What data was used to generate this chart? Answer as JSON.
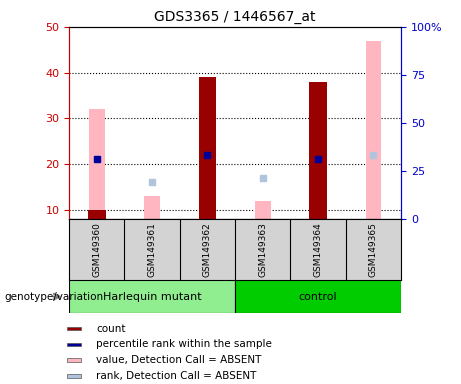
{
  "title": "GDS3365 / 1446567_at",
  "samples": [
    "GSM149360",
    "GSM149361",
    "GSM149362",
    "GSM149363",
    "GSM149364",
    "GSM149365"
  ],
  "groups": [
    {
      "name": "Harlequin mutant",
      "indices": [
        0,
        1,
        2
      ],
      "color": "#90ee90"
    },
    {
      "name": "control",
      "indices": [
        3,
        4,
        5
      ],
      "color": "#00cc00"
    }
  ],
  "count_values": [
    10,
    null,
    39,
    null,
    38,
    null
  ],
  "rank_values": [
    21,
    null,
    22,
    null,
    21,
    null
  ],
  "absent_value": [
    32,
    13,
    null,
    12,
    null,
    47
  ],
  "absent_rank": [
    21,
    16,
    null,
    17,
    null,
    22
  ],
  "ylim_left": [
    8,
    50
  ],
  "yticks_left": [
    10,
    20,
    30,
    40,
    50
  ],
  "ytick_labels_right": [
    "0",
    "25",
    "50",
    "75",
    "100%"
  ],
  "colors": {
    "count": "#990000",
    "rank": "#000099",
    "absent_value": "#ffb6c1",
    "absent_rank": "#b0c4de",
    "axis_left": "#cc0000",
    "axis_right": "#0000cc"
  },
  "legend_items": [
    {
      "label": "count",
      "color": "#990000"
    },
    {
      "label": "percentile rank within the sample",
      "color": "#000099"
    },
    {
      "label": "value, Detection Call = ABSENT",
      "color": "#ffb6c1"
    },
    {
      "label": "rank, Detection Call = ABSENT",
      "color": "#b0c4de"
    }
  ],
  "genotype_label": "genotype/variation"
}
